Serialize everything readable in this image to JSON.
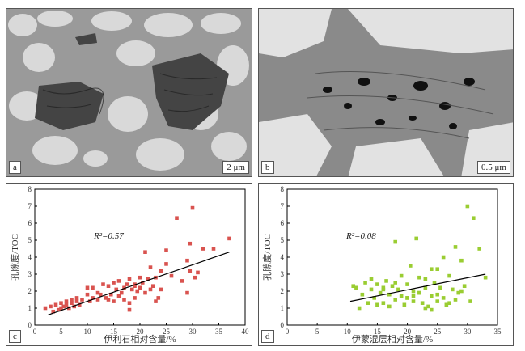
{
  "panels": {
    "a": {
      "label": "a",
      "scale_bar": "2 μm"
    },
    "b": {
      "label": "b",
      "scale_bar": "0.5 μm"
    },
    "c": {
      "label": "c"
    },
    "d": {
      "label": "d"
    }
  },
  "chart_data": [
    {
      "type": "scatter",
      "xlabel": "伊利石相对含量/%",
      "ylabel": "孔隙度/TOC",
      "annotation": "R²=0.57",
      "xlim": [
        0,
        40
      ],
      "ylim": [
        0,
        8
      ],
      "xticks": [
        0,
        5,
        10,
        15,
        20,
        25,
        30,
        35,
        40
      ],
      "yticks": [
        0,
        1,
        2,
        3,
        4,
        5,
        6,
        7,
        8
      ],
      "marker_color": "#d9534f",
      "trendline": {
        "x": [
          2.5,
          37
        ],
        "y": [
          0.6,
          4.3
        ]
      },
      "x": [
        2,
        3,
        3.5,
        4,
        4.5,
        5,
        5,
        5.5,
        6,
        6,
        6.5,
        7,
        7,
        7.5,
        8,
        8,
        8.5,
        9,
        10,
        10,
        10.5,
        11,
        11,
        12,
        12,
        12.5,
        13,
        13.5,
        14,
        14,
        14.5,
        15,
        15,
        15.5,
        16,
        16,
        16.5,
        17,
        17,
        17.5,
        18,
        18,
        18.5,
        19,
        19,
        19.5,
        20,
        20,
        20.5,
        21,
        21,
        21.5,
        22,
        22,
        22.5,
        23,
        23,
        24,
        25,
        25,
        26,
        27,
        28,
        29,
        29.5,
        29.5,
        30,
        30.5,
        31,
        32,
        34,
        37,
        29,
        24,
        23.5,
        19,
        18
      ],
      "y": [
        1,
        1.1,
        0.8,
        1.2,
        0.9,
        1.3,
        1,
        1.1,
        1.4,
        1.2,
        1,
        1.5,
        1.3,
        1.1,
        1.4,
        1.6,
        1.2,
        1.5,
        1.8,
        2.2,
        1.4,
        1.6,
        2.2,
        1.9,
        1.5,
        1.8,
        2.4,
        1.6,
        1.5,
        2.3,
        1.8,
        2.5,
        1.4,
        2.1,
        2.6,
        1.7,
        1.9,
        2.2,
        1.5,
        2.4,
        2.7,
        1.3,
        2.1,
        2.4,
        1.6,
        2,
        2.8,
        2.2,
        2.5,
        4.3,
        1.9,
        2.7,
        3.4,
        2.1,
        2.3,
        2.8,
        1.4,
        3.2,
        3.6,
        4.4,
        2.9,
        6.3,
        2.6,
        3.8,
        4.8,
        3.2,
        6.9,
        2.8,
        3.1,
        4.5,
        4.5,
        5.1,
        1.9,
        2.1,
        1.6,
        2.3,
        0.9
      ]
    },
    {
      "type": "scatter",
      "xlabel": "伊蒙混层相对含量/%",
      "ylabel": "孔隙度/TOC",
      "annotation": "R²=0.08",
      "xlim": [
        0,
        35
      ],
      "ylim": [
        0,
        8
      ],
      "xticks": [
        0,
        5,
        10,
        15,
        20,
        25,
        30,
        35
      ],
      "yticks": [
        0,
        1,
        2,
        3,
        4,
        5,
        6,
        7,
        8
      ],
      "marker_color": "#9acd32",
      "trendline": {
        "x": [
          10.5,
          33
        ],
        "y": [
          1.4,
          3
        ]
      },
      "x": [
        11,
        11.5,
        12,
        12.5,
        13,
        13.5,
        14,
        14.5,
        15,
        15,
        15.5,
        16,
        16,
        16.5,
        17,
        17,
        17.5,
        18,
        18,
        18.5,
        19,
        19,
        19.5,
        20,
        20,
        20.5,
        21,
        21,
        21.5,
        22,
        22,
        22.5,
        23,
        23,
        23.5,
        24,
        24,
        24.5,
        25,
        25,
        25.5,
        26,
        26,
        26.5,
        27,
        27.5,
        28,
        28,
        28.5,
        29,
        29.5,
        30,
        30.5,
        31,
        32,
        33,
        18,
        21,
        23,
        25,
        27,
        29,
        14,
        16,
        20,
        22,
        24
      ],
      "y": [
        2.3,
        2.2,
        1,
        1.8,
        2.5,
        1.3,
        2.1,
        1.6,
        1.2,
        2.4,
        1.9,
        2.1,
        1.3,
        2.6,
        1.8,
        1.1,
        2.3,
        4.9,
        1.5,
        2.1,
        1.7,
        2.9,
        1.2,
        2.4,
        1.6,
        3.5,
        2,
        1.4,
        5.1,
        2.8,
        1.9,
        1.3,
        2.2,
        2.7,
        1.1,
        1.7,
        3.3,
        2.5,
        1.8,
        1.4,
        2.2,
        4,
        1.6,
        1.2,
        2.9,
        2.1,
        4.6,
        1.5,
        1.9,
        3.8,
        2.3,
        7,
        1.4,
        6.3,
        4.5,
        2.8,
        2.5,
        1.7,
        1,
        3.3,
        1.3,
        2,
        2.7,
        2.2,
        1.6,
        1.9,
        0.9
      ]
    }
  ]
}
